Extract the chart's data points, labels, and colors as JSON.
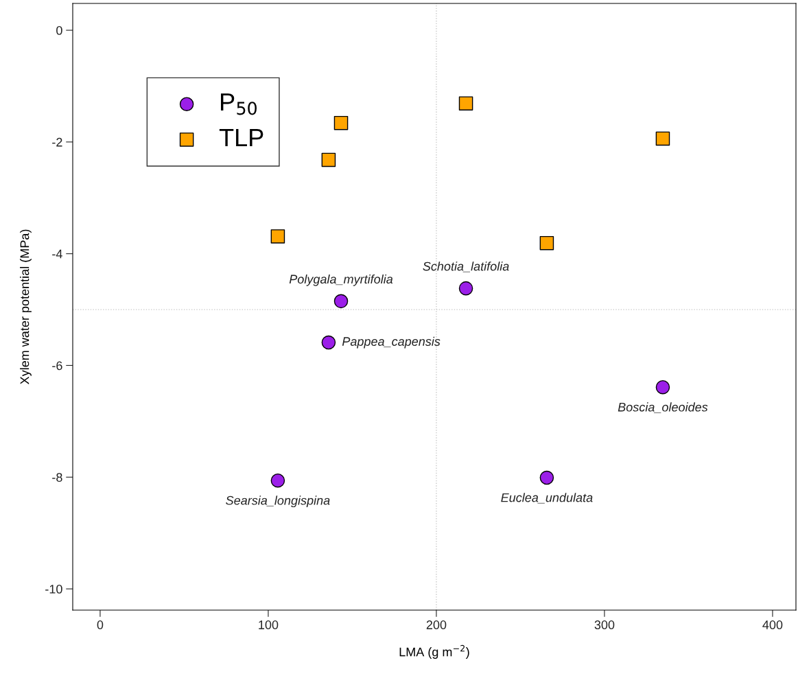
{
  "chart_data": {
    "type": "scatter",
    "xlabel": "LMA (g m$^{−2}$)",
    "ylabel": "Xylem water potential (MPa)",
    "series": [
      {
        "name": "P$_{50}$",
        "color": "#9b1fe8",
        "marker": "circle",
        "x": [
          105.7,
          135.9,
          143.3,
          217.6,
          265.7,
          334.7
        ],
        "values": [
          -8.06,
          -5.59,
          -4.85,
          -4.62,
          -8.01,
          -6.39
        ]
      },
      {
        "name": "TLP",
        "color": "#ffa500",
        "marker": "square",
        "x": [
          105.7,
          135.9,
          143.3,
          217.6,
          265.7,
          334.7
        ],
        "values": [
          -3.69,
          -2.32,
          -1.66,
          -1.31,
          -3.81,
          -1.94
        ]
      }
    ],
    "annotations": [
      {
        "text": "Searsia_longispina",
        "x": 105.7,
        "y": -8.06
      },
      {
        "text": "Pappea_capensis",
        "x": 135.9,
        "y": -5.59
      },
      {
        "text": "Polygala_myrtifolia",
        "x": 143.3,
        "y": -4.85
      },
      {
        "text": "Schotia_latifolia",
        "x": 217.6,
        "y": -4.62
      },
      {
        "text": "Euclea_undulata",
        "x": 265.7,
        "y": -8.01
      },
      {
        "text": "Boscia_oleoides",
        "x": 334.7,
        "y": -6.39
      }
    ],
    "ref_lines": [
      {
        "axis": "x",
        "value": 200,
        "color": "#c8c8c8",
        "line_style": "dotted"
      },
      {
        "axis": "y",
        "value": -5,
        "color": "#c8c8c8",
        "line_style": "dotted"
      }
    ],
    "xlim": [
      -16.3,
      413.9
    ],
    "ylim": [
      -10.38,
      0.48
    ],
    "xticks": [
      0,
      100,
      200,
      300,
      400
    ],
    "yticks": [
      0,
      -2,
      -4,
      -6,
      -8,
      -10
    ],
    "legend": "top left",
    "grid": false
  }
}
